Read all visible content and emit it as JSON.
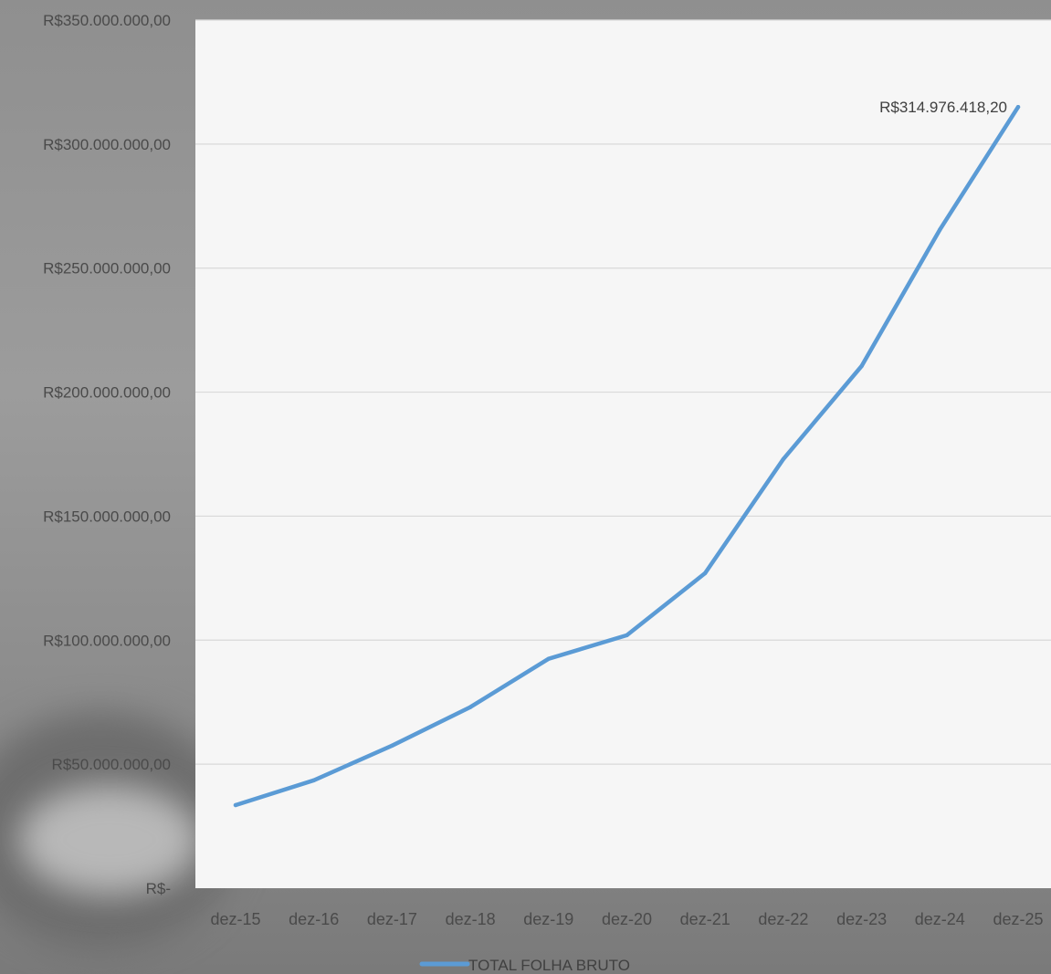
{
  "chart_data": {
    "type": "line",
    "categories": [
      "dez-15",
      "dez-16",
      "dez-17",
      "dez-18",
      "dez-19",
      "dez-20",
      "dez-21",
      "dez-22",
      "dez-23",
      "dez-24",
      "dez-25"
    ],
    "series": [
      {
        "name": "TOTAL FOLHA BRUTO",
        "color": "#5b9bd5",
        "values": [
          33500000,
          43500000,
          57500000,
          73000000,
          92500000,
          102000000,
          127000000,
          173000000,
          210500000,
          265500000,
          314976418.2
        ]
      }
    ],
    "ylim": [
      0,
      350000000
    ],
    "y_ticks": [
      {
        "value": 350000000,
        "label": "R$350.000.000,00"
      },
      {
        "value": 300000000,
        "label": "R$300.000.000,00"
      },
      {
        "value": 250000000,
        "label": "R$250.000.000,00"
      },
      {
        "value": 200000000,
        "label": "R$200.000.000,00"
      },
      {
        "value": 150000000,
        "label": "R$150.000.000,00"
      },
      {
        "value": 100000000,
        "label": "R$100.000.000,00"
      },
      {
        "value": 50000000,
        "label": "R$50.000.000,00"
      },
      {
        "value": 0,
        "label": "R$-"
      }
    ],
    "data_labels": [
      {
        "index": 10,
        "text": "R$314.976.418,20"
      }
    ],
    "grid": true,
    "legend": {
      "position": "bottom",
      "label": "TOTAL FOLHA BRUTO"
    }
  }
}
